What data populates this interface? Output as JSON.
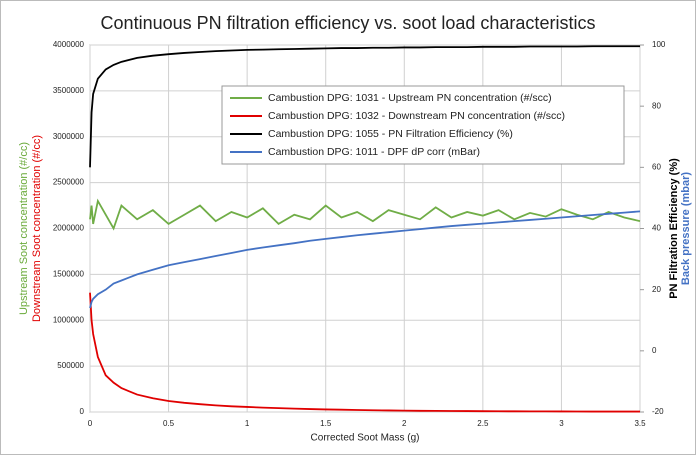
{
  "chart_data": {
    "type": "line",
    "title": "Continuous PN filtration efficiency vs. soot load characteristics",
    "xlabel": "Corrected Soot Mass (g)",
    "ylabels": [
      {
        "text": "Upstream Soot concentration (#/cc)",
        "color": "#6aaa3a"
      },
      {
        "text": "Downstream Soot concentration (#/cc)",
        "color": "#e00000"
      }
    ],
    "y2labels": [
      {
        "text": "PN Filtration Efficiency (%)",
        "color": "#000000"
      },
      {
        "text": "Back pressure (mbar)",
        "color": "#4472c4"
      }
    ],
    "x": [
      0,
      0.01,
      0.02,
      0.05,
      0.1,
      0.15,
      0.2,
      0.3,
      0.4,
      0.5,
      0.6,
      0.7,
      0.8,
      0.9,
      1,
      1.1,
      1.2,
      1.3,
      1.4,
      1.5,
      1.6,
      1.7,
      1.8,
      1.9,
      2,
      2.1,
      2.2,
      2.3,
      2.4,
      2.5,
      2.6,
      2.7,
      2.8,
      2.9,
      3,
      3.1,
      3.2,
      3.3,
      3.4,
      3.5
    ],
    "xlim": [
      0,
      3.5
    ],
    "xticks": [
      0,
      0.5,
      1,
      1.5,
      2,
      2.5,
      3,
      3.5
    ],
    "ylim": [
      0,
      4000000
    ],
    "yticks": [
      0,
      500000,
      1000000,
      1500000,
      2000000,
      2500000,
      3000000,
      3500000,
      4000000
    ],
    "y2lim": [
      -20,
      100
    ],
    "y2ticks": [
      -20,
      0,
      20,
      40,
      60,
      80,
      100
    ],
    "grid": true,
    "series": [
      {
        "name": "Cambustion DPG: 1031 - Upstream PN concentration (#/scc)",
        "color": "#70ad47",
        "values": [
          2100000,
          2250000,
          2050000,
          2300000,
          2150000,
          2000000,
          2250000,
          2100000,
          2200000,
          2050000,
          2150000,
          2250000,
          2080000,
          2180000,
          2120000,
          2220000,
          2050000,
          2150000,
          2100000,
          2250000,
          2120000,
          2180000,
          2080000,
          2200000,
          2150000,
          2100000,
          2230000,
          2120000,
          2180000,
          2140000,
          2200000,
          2100000,
          2170000,
          2130000,
          2210000,
          2150000,
          2100000,
          2180000,
          2120000,
          2080000
        ]
      },
      {
        "name": "Cambustion DPG: 1032 - Downstream PN concentration (#/scc)",
        "color": "#e00000",
        "values": [
          1300000,
          1000000,
          850000,
          600000,
          400000,
          320000,
          260000,
          190000,
          150000,
          120000,
          100000,
          85000,
          72000,
          62000,
          55000,
          48000,
          42000,
          37000,
          32000,
          28000,
          25000,
          22000,
          19000,
          17000,
          15000,
          13000,
          12000,
          11000,
          10000,
          9000,
          8000,
          7500,
          7000,
          6500,
          6000,
          5500,
          5000,
          5000,
          5000,
          5000
        ]
      },
      {
        "name": "Cambustion DPG: 1055 - PN Filtration Efficiency (%)",
        "color": "#000000",
        "axis": "y2",
        "values": [
          60,
          78,
          84,
          89,
          92,
          93.5,
          94.5,
          95.8,
          96.5,
          97,
          97.4,
          97.7,
          98,
          98.2,
          98.4,
          98.5,
          98.6,
          98.7,
          98.8,
          98.9,
          99,
          99,
          99.1,
          99.1,
          99.2,
          99.2,
          99.3,
          99.3,
          99.3,
          99.4,
          99.4,
          99.4,
          99.5,
          99.5,
          99.5,
          99.5,
          99.6,
          99.6,
          99.6,
          99.6
        ]
      },
      {
        "name": "Cambustion DPG: 1011 - DPF dP corr (mBar)",
        "color": "#4472c4",
        "axis": "y2",
        "values": [
          14,
          16,
          17,
          18.5,
          20,
          22,
          23,
          25,
          26.5,
          28,
          29,
          30,
          31,
          32,
          33,
          33.8,
          34.5,
          35.2,
          36,
          36.6,
          37.2,
          37.8,
          38.3,
          38.8,
          39.3,
          39.8,
          40.3,
          40.8,
          41.2,
          41.6,
          42,
          42.4,
          42.8,
          43.2,
          43.6,
          44,
          44.4,
          44.8,
          45.2,
          45.6
        ]
      }
    ]
  }
}
